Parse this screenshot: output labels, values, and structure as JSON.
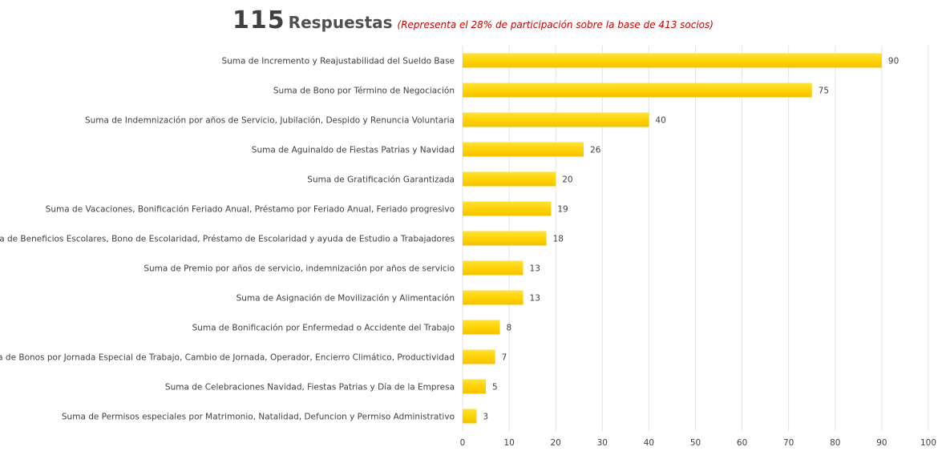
{
  "header": {
    "count": "115",
    "label": "Respuestas",
    "note": "(Representa el 28% de participación sobre la base de 413 socios)"
  },
  "chart_data": {
    "type": "bar",
    "orientation": "horizontal",
    "categories": [
      "Suma de Incremento y Reajustabilidad del Sueldo Base",
      "Suma de Bono por Término de Negociación",
      "Suma de Indemnización por años de Servicio, Jubilación, Despido y Renuncia Voluntaria",
      "Suma de Aguinaldo de Fiestas Patrias y Navidad",
      "Suma de Gratificación Garantizada",
      "Suma de Vacaciones, Bonificación Feriado Anual, Préstamo por Feriado Anual, Feriado progresivo",
      "Suma de Beneficios Escolares, Bono de Escolaridad, Préstamo de Escolaridad y ayuda de Estudio a Trabajadores",
      "Suma de Premio por años de servicio, indemnización por años de servicio",
      "Suma de Asignación de Movilización y Alimentación",
      "Suma de Bonificación por Enfermedad o Accidente del Trabajo",
      "Suma de Bonos por Jornada Especial de Trabajo, Cambio de Jornada, Operador, Encierro Climático, Productividad",
      "Suma de Celebraciones Navidad, Fiestas Patrias y Día de la Empresa",
      "Suma de Permisos especiales por Matrimonio, Natalidad, Defuncion y Permiso Administrativo"
    ],
    "values": [
      90,
      75,
      40,
      26,
      20,
      19,
      18,
      13,
      13,
      8,
      7,
      5,
      3
    ],
    "xlim": [
      0,
      100
    ],
    "xticks": [
      0,
      10,
      20,
      30,
      40,
      50,
      60,
      70,
      80,
      90,
      100
    ],
    "grid": "vertical",
    "legend": "none",
    "bar_color": "#ffd200"
  }
}
